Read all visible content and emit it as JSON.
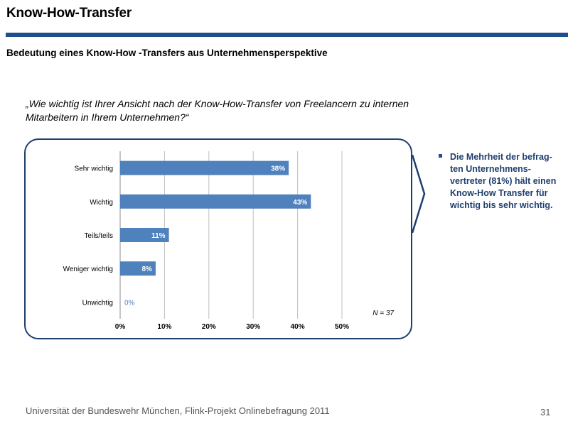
{
  "slide": {
    "title": "Know-How-Transfer",
    "subtitle": "Bedeutung eines Know-How -Transfers aus Unternehmensperspektive",
    "question": "„Wie wichtig ist Ihrer Ansicht nach der Know-How-Transfer von Freelancern zu internen Mitarbeitern in Ihrem Unternehmen?“",
    "bullet": "Die Mehrheit der befrag-ten Unternehmens-vertreter (81%) hält einen Know-How Transfer für wichtig bis sehr wichtig.",
    "footer": "Universität der Bundeswehr München, Flink-Projekt Onlinebefragung  2011",
    "page_number": "31"
  },
  "colors": {
    "bar": "#4f81bd",
    "accent": "#1f4e8c",
    "zero_label": "#4f81bd"
  },
  "chart_data": {
    "type": "bar",
    "orientation": "horizontal",
    "categories": [
      "Sehr wichtig",
      "Wichtig",
      "Teils/teils",
      "Weniger wichtig",
      "Unwichtig"
    ],
    "values": [
      38,
      43,
      11,
      8,
      0
    ],
    "value_labels": [
      "38%",
      "43%",
      "11%",
      "8%",
      "0%"
    ],
    "xlim": [
      0,
      50
    ],
    "xticks": [
      0,
      10,
      20,
      30,
      40,
      50
    ],
    "xtick_labels": [
      "0%",
      "10%",
      "20%",
      "30%",
      "40%",
      "50%"
    ],
    "grid": true,
    "annotation": "N = 37"
  }
}
